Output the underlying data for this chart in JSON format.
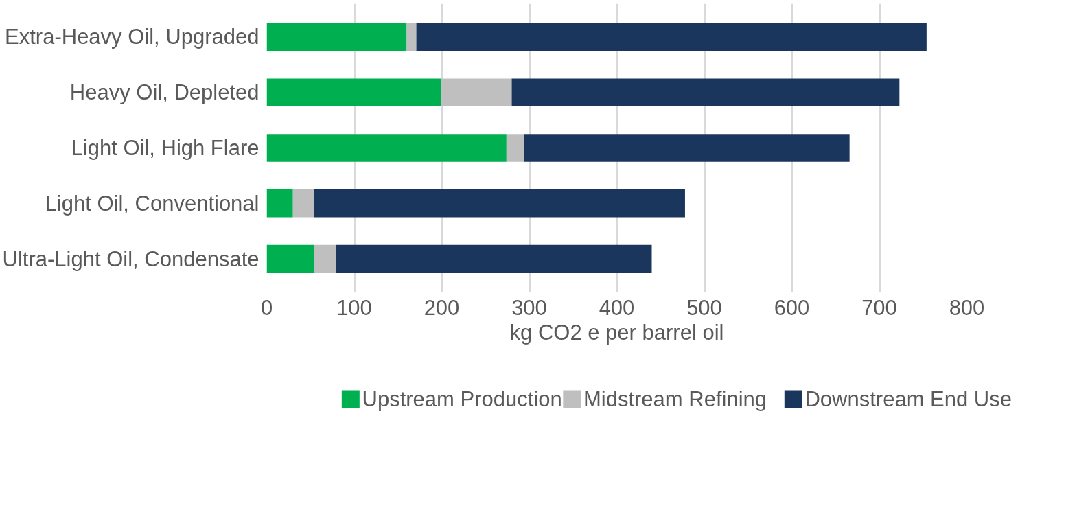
{
  "chart_data": {
    "type": "bar",
    "orientation": "horizontal",
    "stacked": true,
    "categories": [
      "Extra-Heavy Oil, Upgraded",
      "Heavy Oil, Depleted",
      "Light Oil, High Flare",
      "Light Oil, Conventional",
      "Ultra-Light Oil, Condensate"
    ],
    "series": [
      {
        "name": "Upstream Production",
        "color": "#00b050",
        "values": [
          160,
          199,
          274,
          30,
          54
        ]
      },
      {
        "name": "Midstream Refining",
        "color": "#bfbfbf",
        "values": [
          11,
          81,
          20,
          24,
          25
        ]
      },
      {
        "name": "Downstream End Use",
        "color": "#1a365d",
        "values": [
          583,
          443,
          372,
          424,
          361
        ]
      }
    ],
    "xlabel": "kg CO2 e per barrel oil",
    "xlim": [
      0,
      800
    ],
    "xticks": [
      0,
      100,
      200,
      300,
      400,
      500,
      600,
      700,
      800
    ],
    "grid": "x",
    "legend": "bottom"
  }
}
